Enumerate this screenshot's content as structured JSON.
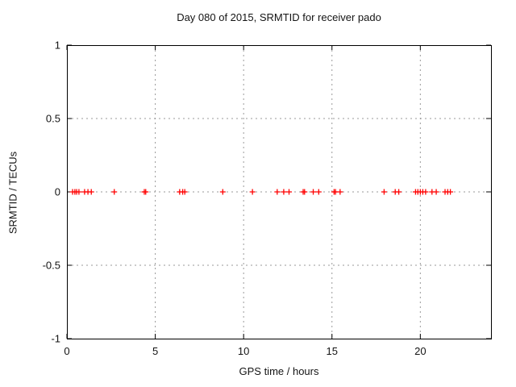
{
  "chart_data": {
    "type": "scatter",
    "title": "Day 080 of 2015, SRMTID for receiver pado",
    "xlabel": "GPS time / hours",
    "ylabel": "SRMTID / TECUs",
    "xlim": [
      0,
      24
    ],
    "ylim": [
      -1,
      1
    ],
    "xticks": [
      0,
      5,
      10,
      15,
      20
    ],
    "xtick_labels": [
      "0",
      "5",
      "10",
      "15",
      "20"
    ],
    "yticks": [
      -1,
      -0.5,
      0,
      0.5,
      1
    ],
    "ytick_labels": [
      "-1",
      "-0.5",
      "0",
      "0.5",
      "1"
    ],
    "grid": true,
    "legend": "none",
    "colors": {
      "marker": "#ff0000",
      "axis": "#000000",
      "grid": "#9a9a9a",
      "text": "#141414",
      "background": "#ffffff"
    },
    "series": [
      {
        "name": "SRMTID",
        "marker": "plus",
        "color": "#ff0000",
        "x": [
          0.32,
          0.45,
          0.55,
          0.68,
          1.0,
          1.19,
          1.38,
          2.68,
          4.38,
          4.46,
          6.38,
          6.55,
          6.67,
          8.82,
          10.5,
          11.9,
          12.27,
          12.57,
          13.37,
          13.45,
          13.94,
          14.25,
          15.12,
          15.2,
          15.46,
          17.95,
          18.58,
          18.78,
          19.73,
          19.86,
          20.0,
          20.14,
          20.3,
          20.66,
          20.9,
          21.4,
          21.55,
          21.7
        ],
        "y": [
          0,
          0,
          0,
          0,
          0,
          0,
          0,
          0,
          0,
          0,
          0,
          0,
          0,
          0,
          0,
          0,
          0,
          0,
          0,
          0,
          0,
          0,
          0,
          0,
          0,
          0,
          0,
          0,
          0,
          0,
          0,
          0,
          0,
          0,
          0,
          0,
          0,
          0
        ]
      }
    ]
  }
}
